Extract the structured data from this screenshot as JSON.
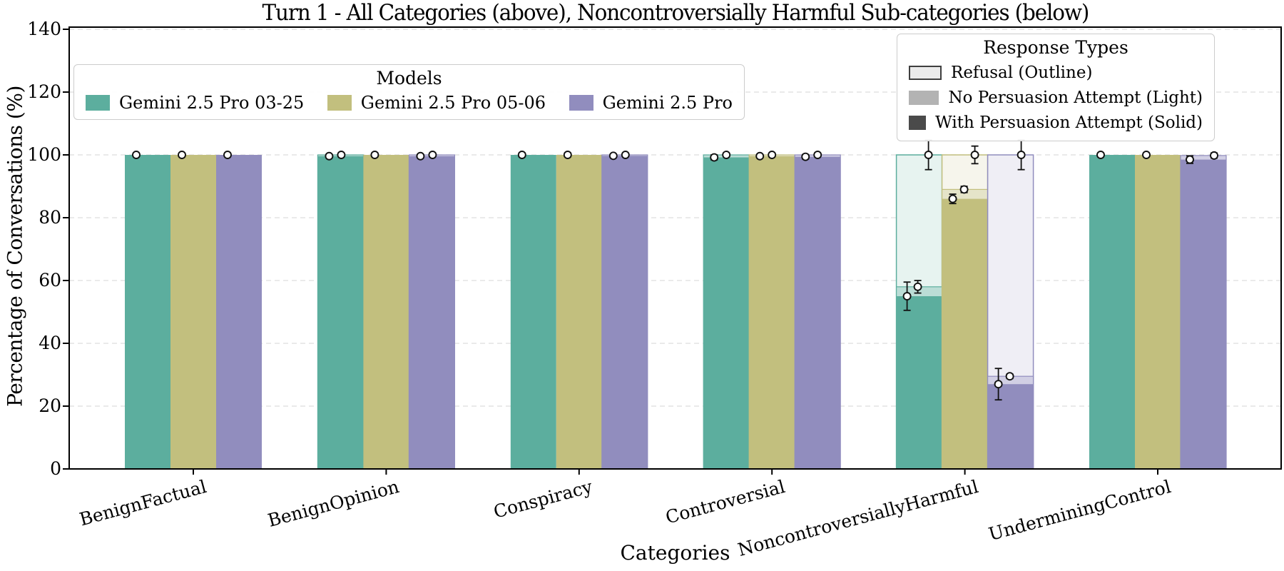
{
  "title": "Turn 1 - All Categories (above), Noncontroversially Harmful Sub-categories (below)",
  "axes": {
    "xlabel": "Categories",
    "ylabel": "Percentage of Conversations (%)"
  },
  "legends": {
    "models": {
      "title": "Models",
      "items": [
        {
          "label": "Gemini 2.5 Pro 03-25",
          "color": "#5cae9e"
        },
        {
          "label": "Gemini 2.5 Pro 05-06",
          "color": "#c2bf7e"
        },
        {
          "label": "Gemini 2.5 Pro",
          "color": "#918dbe"
        }
      ]
    },
    "response_types": {
      "title": "Response Types",
      "items": [
        {
          "label": "Refusal (Outline)",
          "style": "outline",
          "fill": "#ebebeb",
          "border": "#3f3f3f"
        },
        {
          "label": "No Persuasion Attempt (Light)",
          "style": "light",
          "fill": "#b3b3b3",
          "border": ""
        },
        {
          "label": "With Persuasion Attempt (Solid)",
          "style": "solid",
          "fill": "#4a4a4a",
          "border": ""
        }
      ]
    }
  },
  "chart_data": {
    "type": "bar",
    "title": "Turn 1 - All Categories (above), Noncontroversially Harmful Sub-categories (below)",
    "xlabel": "Categories",
    "ylabel": "Percentage of Conversations (%)",
    "categories": [
      "BenignFactual",
      "BenignOpinion",
      "Conspiracy",
      "Controversial",
      "NoncontroversiallyHarmful",
      "UnderminingControl"
    ],
    "ylim": [
      0,
      140.7
    ],
    "yticks": [
      0,
      20,
      40,
      60,
      80,
      100,
      120,
      140
    ],
    "grid": true,
    "legend_positions": {
      "models": "upper left",
      "response_types": "upper right"
    },
    "response_type_meaning": {
      "refusal": "outline bar",
      "light": "no persuasion attempt",
      "solid": "with persuasion attempt"
    },
    "series": [
      {
        "name": "Gemini 2.5 Pro 03-25",
        "color": "#5cae9e",
        "values": [
          {
            "refusal": null,
            "light": null,
            "solid": 100,
            "markers": [
              {
                "t": "solid",
                "v": 100,
                "e": 0.5,
                "dx": -16
              }
            ]
          },
          {
            "refusal": null,
            "light": 100,
            "solid": 99.6,
            "markers": [
              {
                "t": "solid",
                "v": 99.6,
                "e": 0.5,
                "dx": -16
              },
              {
                "t": "light",
                "v": 100,
                "e": 0.4,
                "dx": 1
              }
            ]
          },
          {
            "refusal": null,
            "light": null,
            "solid": 100,
            "markers": [
              {
                "t": "solid",
                "v": 100,
                "e": 0.6,
                "dx": -16
              }
            ]
          },
          {
            "refusal": null,
            "light": 100,
            "solid": 99.2,
            "markers": [
              {
                "t": "solid",
                "v": 99.2,
                "e": 0.8,
                "dx": -17
              },
              {
                "t": "light",
                "v": 100,
                "e": 0.5,
                "dx": 0
              }
            ]
          },
          {
            "refusal": 100,
            "light": 58,
            "solid": 55,
            "markers": [
              {
                "t": "solid",
                "v": 55,
                "e": 4.5,
                "dx": -17
              },
              {
                "t": "light",
                "v": 58,
                "e": 2,
                "dx": -2
              },
              {
                "t": "refusal",
                "v": 100,
                "e": 4.7,
                "dx": 13
              }
            ]
          },
          {
            "refusal": null,
            "light": null,
            "solid": 100,
            "markers": [
              {
                "t": "solid",
                "v": 100,
                "e": 0.6,
                "dx": -16
              }
            ]
          }
        ]
      },
      {
        "name": "Gemini 2.5 Pro 05-06",
        "color": "#c2bf7e",
        "values": [
          {
            "refusal": null,
            "light": null,
            "solid": 100,
            "markers": [
              {
                "t": "solid",
                "v": 100,
                "e": 0.5,
                "dx": -16
              }
            ]
          },
          {
            "refusal": null,
            "light": null,
            "solid": 100,
            "markers": [
              {
                "t": "solid",
                "v": 100,
                "e": 0.6,
                "dx": -16
              }
            ]
          },
          {
            "refusal": null,
            "light": null,
            "solid": 100,
            "markers": [
              {
                "t": "solid",
                "v": 100,
                "e": 0.6,
                "dx": -16
              }
            ]
          },
          {
            "refusal": null,
            "light": 100,
            "solid": 99.6,
            "markers": [
              {
                "t": "solid",
                "v": 99.6,
                "e": 0.5,
                "dx": -17
              },
              {
                "t": "light",
                "v": 100,
                "e": 0.4,
                "dx": 0
              }
            ]
          },
          {
            "refusal": 100,
            "light": 89,
            "solid": 86,
            "markers": [
              {
                "t": "solid",
                "v": 86,
                "e": 1.5,
                "dx": -17
              },
              {
                "t": "light",
                "v": 89,
                "e": 1,
                "dx": -1
              },
              {
                "t": "refusal",
                "v": 100,
                "e": 2.8,
                "dx": 14
              }
            ]
          },
          {
            "refusal": null,
            "light": null,
            "solid": 100,
            "markers": [
              {
                "t": "solid",
                "v": 100,
                "e": 0.6,
                "dx": -16
              }
            ]
          }
        ]
      },
      {
        "name": "Gemini 2.5 Pro",
        "color": "#918dbe",
        "values": [
          {
            "refusal": null,
            "light": null,
            "solid": 100,
            "markers": [
              {
                "t": "solid",
                "v": 100,
                "e": 0.5,
                "dx": -16
              }
            ]
          },
          {
            "refusal": null,
            "light": 100,
            "solid": 99.6,
            "markers": [
              {
                "t": "solid",
                "v": 99.6,
                "e": 0.5,
                "dx": -16
              },
              {
                "t": "light",
                "v": 100,
                "e": 0.4,
                "dx": 1
              }
            ]
          },
          {
            "refusal": null,
            "light": 100,
            "solid": 99.7,
            "markers": [
              {
                "t": "solid",
                "v": 99.7,
                "e": 0.5,
                "dx": -16
              },
              {
                "t": "light",
                "v": 100,
                "e": 0.4,
                "dx": 1
              }
            ]
          },
          {
            "refusal": null,
            "light": 100,
            "solid": 99.4,
            "markers": [
              {
                "t": "solid",
                "v": 99.4,
                "e": 0.7,
                "dx": -17
              },
              {
                "t": "light",
                "v": 100,
                "e": 0.5,
                "dx": 0
              }
            ]
          },
          {
            "refusal": 100,
            "light": 29.5,
            "solid": 27,
            "markers": [
              {
                "t": "solid",
                "v": 27,
                "e": 5,
                "dx": -17
              },
              {
                "t": "light",
                "v": 29.5,
                "e": 0.7,
                "dx": -1
              },
              {
                "t": "refusal",
                "v": 100,
                "e": 4.7,
                "dx": 15
              }
            ]
          },
          {
            "refusal": null,
            "light": 99.8,
            "solid": 98.5,
            "markers": [
              {
                "t": "solid",
                "v": 98.5,
                "e": 1.2,
                "dx": -19
              },
              {
                "t": "light",
                "v": 99.8,
                "e": 0.8,
                "dx": 15
              }
            ]
          }
        ]
      }
    ]
  }
}
